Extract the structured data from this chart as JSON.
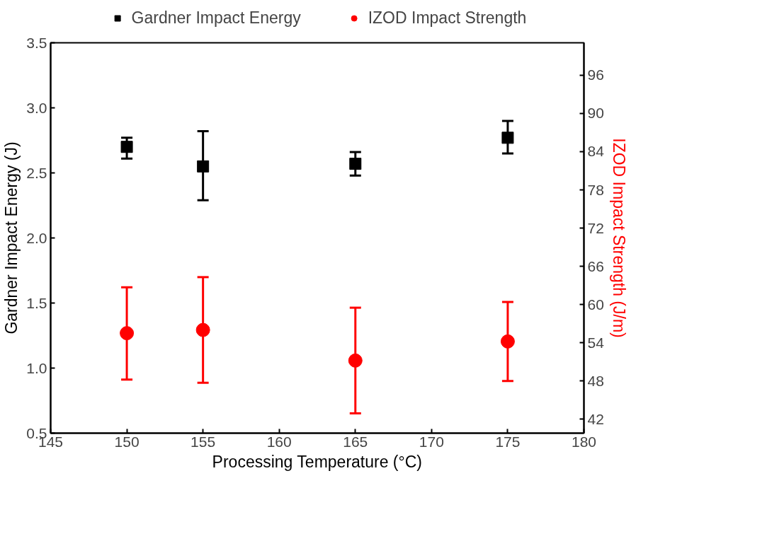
{
  "chart_data": {
    "type": "scatter",
    "xlabel": "Processing Temperature (°C)",
    "ylabel": "Gardner Impact Energy (J)",
    "y2label": "IZOD Impact Strength (J/m)",
    "x": [
      150,
      155,
      165,
      175
    ],
    "series": [
      {
        "name": "Gardner Impact Energy",
        "color": "#000000",
        "marker": "square",
        "values": [
          2.7,
          2.55,
          2.57,
          2.77
        ],
        "errors": [
          [
            2.61,
            2.77
          ],
          [
            2.29,
            2.82
          ],
          [
            2.48,
            2.66
          ],
          [
            2.65,
            2.9
          ]
        ]
      },
      {
        "name": "IZOD Impact Strength",
        "color": "#ff0000",
        "marker": "circle",
        "axis": "y2",
        "values": [
          55.5,
          56.0,
          51.2,
          54.2
        ],
        "errors": [
          [
            48.2,
            62.7
          ],
          [
            47.7,
            64.3
          ],
          [
            42.9,
            59.5
          ],
          [
            48.0,
            60.4
          ]
        ]
      }
    ],
    "xlim": [
      145,
      180
    ],
    "xticks": [
      145,
      150,
      155,
      160,
      165,
      170,
      175,
      180
    ],
    "ylim": [
      0.5,
      3.5
    ],
    "yticks": [
      0.5,
      {
        "value": 1,
        "label": "1.0"
      },
      1.5,
      {
        "value": 2,
        "label": "2.0"
      },
      2.5,
      {
        "value": 3,
        "label": "3.0"
      },
      3.5
    ],
    "y2lim": [
      39.8,
      101.1
    ],
    "y2ticks": [
      42,
      48,
      54,
      60,
      66,
      72,
      78,
      84,
      90,
      96
    ],
    "grid": false,
    "legend": "top"
  }
}
